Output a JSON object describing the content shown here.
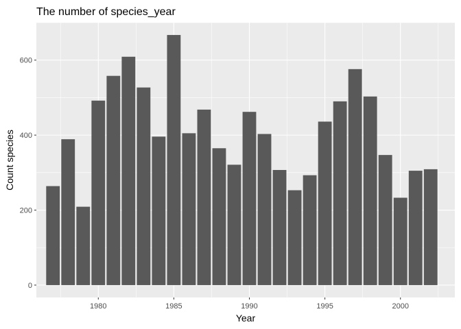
{
  "chart_data": {
    "type": "bar",
    "title": "The number of species_year",
    "xlabel": "Year",
    "ylabel": "Count species",
    "x": [
      1977,
      1978,
      1979,
      1980,
      1981,
      1982,
      1983,
      1984,
      1985,
      1986,
      1987,
      1988,
      1989,
      1990,
      1991,
      1992,
      1993,
      1994,
      1995,
      1996,
      1997,
      1998,
      1999,
      2000,
      2001,
      2002
    ],
    "values": [
      264,
      389,
      209,
      492,
      558,
      609,
      527,
      396,
      667,
      405,
      468,
      365,
      321,
      462,
      403,
      307,
      253,
      293,
      436,
      490,
      576,
      503,
      347,
      233,
      305,
      309
    ],
    "xlim": [
      1975.9,
      2003.6
    ],
    "ylim": [
      -33,
      700
    ],
    "xticks": [
      1980,
      1985,
      1990,
      1995,
      2000
    ],
    "xtick_labels": [
      "1980",
      "1985",
      "1990",
      "1995",
      "2000"
    ],
    "yticks": [
      0,
      200,
      400,
      600
    ],
    "ytick_labels": [
      "0",
      "200",
      "400",
      "600"
    ],
    "grid": true,
    "colors": {
      "bar": "#595959",
      "panel": "#ebebeb",
      "grid": "#ffffff"
    }
  }
}
